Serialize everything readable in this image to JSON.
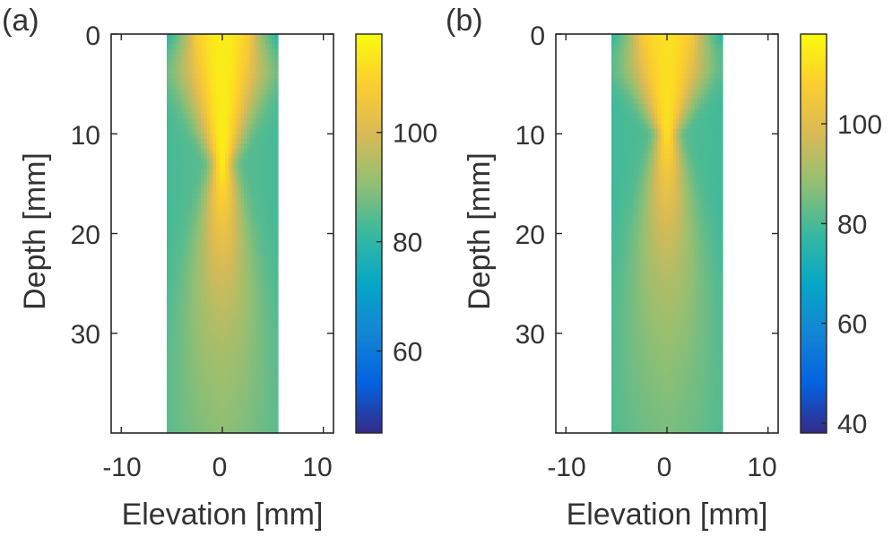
{
  "figure": {
    "background": "#ffffff"
  },
  "chart_data": [
    {
      "type": "heatmap",
      "panel_label": "(a)",
      "xlabel": "Elevation [mm]",
      "ylabel": "Depth [mm]",
      "xlim": [
        -11,
        11
      ],
      "ylim": [
        40,
        0
      ],
      "x_ticks": [
        -10,
        0,
        10
      ],
      "x_tick_labels": [
        "-10",
        "0",
        "10"
      ],
      "y_ticks": [
        0,
        10,
        20,
        30
      ],
      "y_tick_labels": [
        "0",
        "10",
        "20",
        "30"
      ],
      "data_extent": {
        "x": [
          -5.5,
          5.5
        ],
        "depth": [
          0,
          40
        ]
      },
      "colorbar": {
        "colormap": "parula",
        "range": [
          45,
          118
        ],
        "ticks": [
          60,
          80,
          100
        ],
        "tick_labels": [
          "60",
          "80",
          "100"
        ]
      },
      "field": {
        "peak": 115,
        "base": 86,
        "edge_top": 79,
        "edge_bottom": 83,
        "focal_depth": 13
      },
      "grid": false
    },
    {
      "type": "heatmap",
      "panel_label": "(b)",
      "xlabel": "Elevation [mm]",
      "ylabel": "Depth [mm]",
      "xlim": [
        -11,
        11
      ],
      "ylim": [
        40,
        0
      ],
      "x_ticks": [
        -10,
        0,
        10
      ],
      "x_tick_labels": [
        "-10",
        "0",
        "10"
      ],
      "y_ticks": [
        0,
        10,
        20,
        30
      ],
      "y_tick_labels": [
        "0",
        "10",
        "20",
        "30"
      ],
      "data_extent": {
        "x": [
          -5.5,
          5.5
        ],
        "depth": [
          0,
          40
        ]
      },
      "colorbar": {
        "colormap": "parula",
        "range": [
          38,
          118
        ],
        "ticks": [
          40,
          60,
          80,
          100
        ],
        "tick_labels": [
          "40",
          "60",
          "80",
          "100"
        ]
      },
      "field": {
        "peak": 112,
        "base": 82,
        "edge_top": 76,
        "edge_bottom": 79,
        "focal_depth": 10
      },
      "grid": false
    }
  ]
}
